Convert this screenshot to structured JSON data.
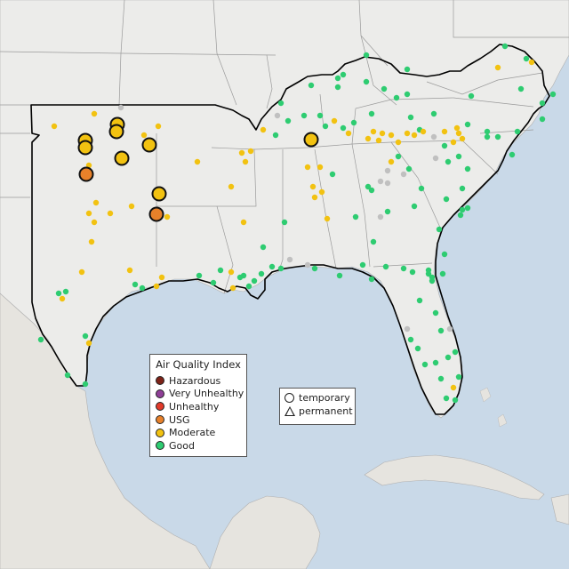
{
  "legend_aqi": {
    "title": "Air Quality Index",
    "items": [
      {
        "label": "Hazardous",
        "color": "#7e2318"
      },
      {
        "label": "Very Unhealthy",
        "color": "#8f3f97"
      },
      {
        "label": "Unhealthy",
        "color": "#e23a2a"
      },
      {
        "label": "USG",
        "color": "#e8812a"
      },
      {
        "label": "Moderate",
        "color": "#f2c211"
      },
      {
        "label": "Good",
        "color": "#2ecc71"
      }
    ]
  },
  "legend_type": {
    "items": [
      {
        "label": "temporary",
        "shape": "circle"
      },
      {
        "label": "permanent",
        "shape": "triangle"
      }
    ]
  },
  "colors": {
    "water": "#c9d9e8",
    "land": "#ececea",
    "state_border": "#9a9a9a",
    "region_outline": "#000000",
    "no_data": "#c0c0c0"
  }
}
